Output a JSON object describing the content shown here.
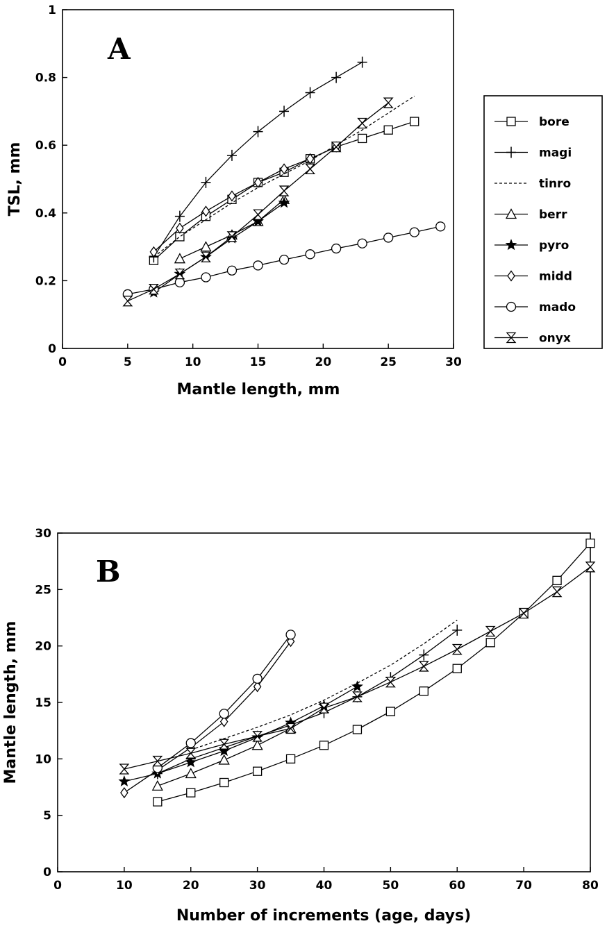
{
  "legend": [
    "bore",
    "magi",
    "tinro",
    "berr",
    "pyro",
    "midd",
    "mado",
    "onyx"
  ],
  "chart_data": [
    {
      "type": "line",
      "panel_label": "A",
      "xlabel": "Mantle length, mm",
      "ylabel": "TSL, mm",
      "xlim": [
        0,
        30
      ],
      "ylim": [
        0,
        1
      ],
      "xticks": [
        0,
        5,
        10,
        15,
        20,
        25,
        30
      ],
      "yticks": [
        0,
        0.2,
        0.4,
        0.6,
        0.8,
        1
      ],
      "ytick_labels": [
        "0",
        "0.2",
        "0.4",
        "0.6",
        "0.8",
        "1"
      ],
      "legend_position": "right",
      "series": [
        {
          "name": "bore",
          "marker": "square",
          "x": [
            7,
            9,
            11,
            13,
            15,
            17,
            19,
            21,
            23,
            25,
            27
          ],
          "y": [
            0.26,
            0.33,
            0.39,
            0.44,
            0.49,
            0.52,
            0.56,
            0.595,
            0.62,
            0.645,
            0.67
          ]
        },
        {
          "name": "magi",
          "marker": "plus",
          "x": [
            7,
            9,
            11,
            13,
            15,
            17,
            19,
            21,
            23
          ],
          "y": [
            0.27,
            0.39,
            0.49,
            0.57,
            0.64,
            0.7,
            0.755,
            0.8,
            0.845
          ]
        },
        {
          "name": "tinro",
          "marker": "none",
          "dashed": true,
          "x": [
            7,
            9,
            11,
            13,
            15,
            17,
            19,
            21,
            23,
            25,
            27
          ],
          "y": [
            0.27,
            0.33,
            0.38,
            0.43,
            0.475,
            0.515,
            0.555,
            0.6,
            0.645,
            0.695,
            0.745
          ]
        },
        {
          "name": "berr",
          "marker": "triangle",
          "x": [
            9,
            11,
            13,
            15,
            17
          ],
          "y": [
            0.265,
            0.3,
            0.335,
            0.375,
            0.44
          ]
        },
        {
          "name": "pyro",
          "marker": "star",
          "x": [
            7,
            9,
            11,
            13,
            15,
            17
          ],
          "y": [
            0.165,
            0.22,
            0.27,
            0.325,
            0.375,
            0.43
          ]
        },
        {
          "name": "midd",
          "marker": "diamond",
          "x": [
            7,
            9,
            11,
            13,
            15,
            17,
            19,
            21
          ],
          "y": [
            0.285,
            0.355,
            0.405,
            0.45,
            0.49,
            0.53,
            0.56,
            0.595
          ]
        },
        {
          "name": "mado",
          "marker": "circle",
          "x": [
            5,
            7,
            9,
            11,
            13,
            15,
            17,
            19,
            21,
            23,
            25,
            27,
            29
          ],
          "y": [
            0.16,
            0.175,
            0.195,
            0.21,
            0.23,
            0.245,
            0.262,
            0.278,
            0.295,
            0.31,
            0.327,
            0.343,
            0.36
          ]
        },
        {
          "name": "onyx",
          "marker": "hourglass",
          "x": [
            5,
            7,
            9,
            11,
            13,
            15,
            17,
            19,
            21,
            23,
            25
          ],
          "y": [
            0.14,
            0.175,
            0.22,
            0.27,
            0.33,
            0.395,
            0.465,
            0.53,
            0.595,
            0.665,
            0.725
          ]
        }
      ]
    },
    {
      "type": "line",
      "panel_label": "B",
      "xlabel": "Number of increments (age, days)",
      "ylabel": "Mantle length, mm",
      "xlim": [
        0,
        80
      ],
      "ylim": [
        0,
        30
      ],
      "xticks": [
        0,
        10,
        20,
        30,
        40,
        50,
        60,
        70,
        80
      ],
      "yticks": [
        0,
        5,
        10,
        15,
        20,
        25,
        30
      ],
      "ytick_labels": [
        "0",
        "5",
        "10",
        "15",
        "20",
        "25",
        "30"
      ],
      "series": [
        {
          "name": "bore",
          "marker": "square",
          "x": [
            15,
            20,
            25,
            30,
            35,
            40,
            45,
            50,
            55,
            60,
            65,
            70,
            75,
            80
          ],
          "y": [
            6.2,
            7.0,
            7.9,
            8.9,
            10.0,
            11.2,
            12.6,
            14.2,
            16.0,
            18.0,
            20.3,
            22.9,
            25.8,
            29.1
          ]
        },
        {
          "name": "magi",
          "marker": "plus",
          "x": [
            15,
            20,
            25,
            30,
            35,
            40,
            45,
            50,
            55,
            60
          ],
          "y": [
            8.7,
            10.0,
            11.0,
            12.0,
            13.0,
            14.1,
            15.5,
            17.2,
            19.2,
            21.4
          ]
        },
        {
          "name": "tinro",
          "marker": "none",
          "dashed": true,
          "x": [
            20,
            25,
            30,
            35,
            40,
            45,
            50,
            55,
            60
          ],
          "y": [
            10.8,
            11.8,
            12.8,
            13.9,
            15.2,
            16.7,
            18.3,
            20.2,
            22.3
          ]
        },
        {
          "name": "berr",
          "marker": "triangle",
          "x": [
            15,
            20,
            25,
            30,
            35
          ],
          "y": [
            7.6,
            8.7,
            9.9,
            11.2,
            12.7
          ]
        },
        {
          "name": "pyro",
          "marker": "star",
          "x": [
            10,
            15,
            20,
            25,
            30,
            35,
            40,
            45
          ],
          "y": [
            8.0,
            8.7,
            9.7,
            10.7,
            11.9,
            13.2,
            14.7,
            16.4
          ]
        },
        {
          "name": "midd",
          "marker": "diamond",
          "x": [
            10,
            15,
            20,
            25,
            30,
            35
          ],
          "y": [
            7.0,
            9.0,
            11.0,
            13.3,
            16.4,
            20.4
          ]
        },
        {
          "name": "mado",
          "marker": "circle",
          "x": [
            15,
            20,
            25,
            30,
            35
          ],
          "y": [
            9.2,
            11.4,
            14.0,
            17.1,
            21.0
          ]
        },
        {
          "name": "onyx",
          "marker": "hourglass",
          "x": [
            10,
            15,
            20,
            25,
            30,
            35,
            40,
            45,
            50,
            55,
            60,
            65,
            70,
            75,
            80
          ],
          "y": [
            9.1,
            9.8,
            10.5,
            11.3,
            12.0,
            12.7,
            14.5,
            15.5,
            16.8,
            18.2,
            19.7,
            21.3,
            22.9,
            24.8,
            27.0
          ]
        }
      ]
    }
  ]
}
